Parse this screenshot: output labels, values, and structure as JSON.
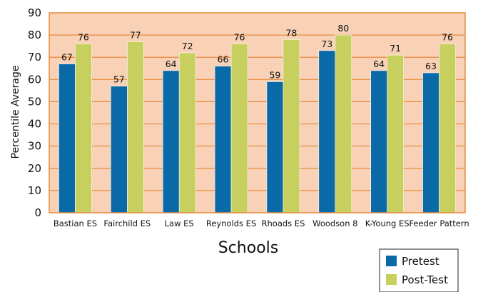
{
  "chart_data": {
    "type": "bar",
    "title": "",
    "xlabel": "Schools",
    "ylabel": "Percentile Average",
    "ylim": [
      0,
      90
    ],
    "yticks": [
      0,
      10,
      20,
      30,
      40,
      50,
      60,
      70,
      80,
      90
    ],
    "grid": true,
    "legend_position": "bottom-right",
    "categories": [
      "Bastian ES",
      "Fairchild ES",
      "Law ES",
      "Reynolds ES",
      "Rhoads ES",
      "Woodson 8",
      "K-Young ES",
      "Feeder Pattern"
    ],
    "series": [
      {
        "name": "Pretest",
        "color": "#0a6aa8",
        "values": [
          67,
          57,
          64,
          66,
          59,
          73,
          64,
          63
        ]
      },
      {
        "name": "Post-Test",
        "color": "#c7cf5e",
        "values": [
          76,
          77,
          72,
          76,
          78,
          80,
          71,
          76
        ]
      }
    ],
    "colors": {
      "plot_background": "#f8d1b6",
      "frame": "#e98a3c",
      "grid": "#e98a3c"
    }
  }
}
